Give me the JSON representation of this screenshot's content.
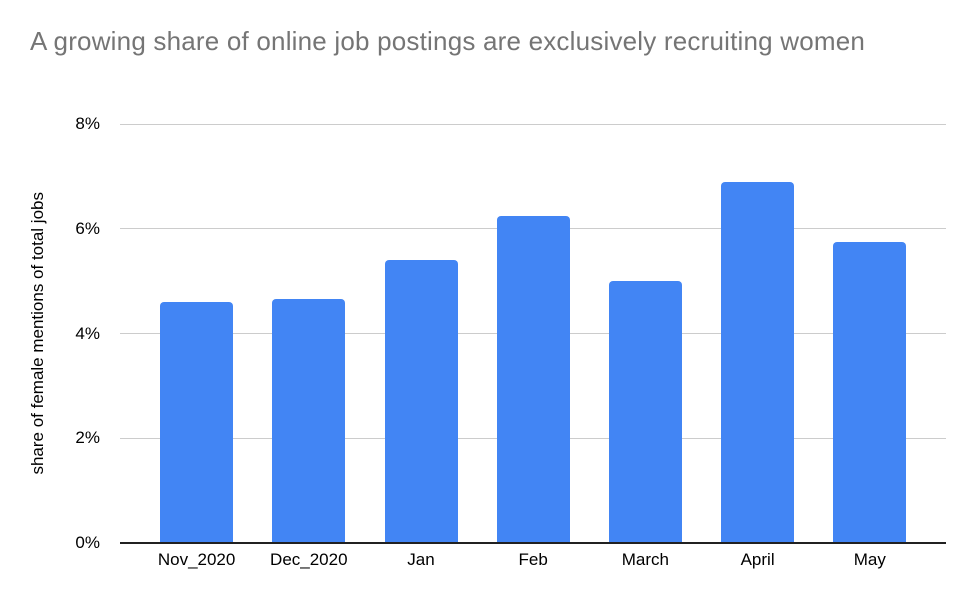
{
  "chart_data": {
    "type": "bar",
    "title": "A growing share of online job postings are exclusively recruiting women",
    "ylabel": "share of female mentions of total jobs",
    "xlabel": "",
    "categories": [
      "Nov_2020",
      "Dec_2020",
      "Jan",
      "Feb",
      "March",
      "April",
      "May"
    ],
    "values": [
      4.6,
      4.65,
      5.4,
      6.25,
      5.0,
      6.9,
      5.75
    ],
    "ylim": [
      0,
      8
    ],
    "yticks": [
      0,
      2,
      4,
      6,
      8
    ],
    "ytick_labels": [
      "0%",
      "2%",
      "4%",
      "6%",
      "8%"
    ],
    "grid": true,
    "legend": "none"
  },
  "colors": {
    "bar": "#4285f4",
    "title_text": "#757575",
    "axis_text": "#000000",
    "gridline": "#cccccc",
    "baseline": "#212121",
    "background": "#ffffff"
  }
}
